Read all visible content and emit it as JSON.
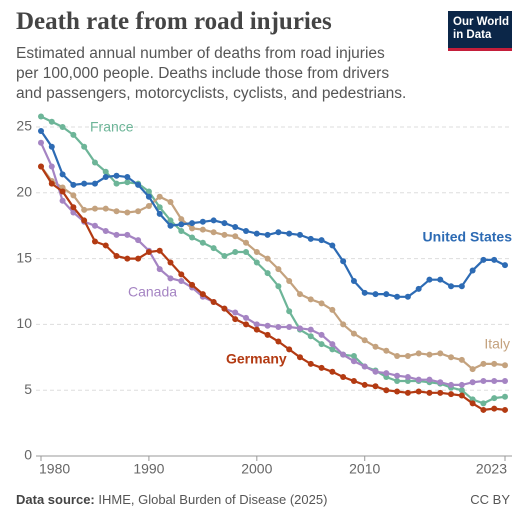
{
  "chart_data": {
    "type": "line",
    "title": "Death rate from road injuries",
    "subtitle": "Estimated annual number of deaths from road injuries per 100,000 people. Deaths include those from drivers and passengers, motorcyclists, cyclists, and pedestrians.",
    "logo": "Our World in Data",
    "source_label": "Data source:",
    "source": "IHME, Global Burden of Disease (2025)",
    "license": "CC BY",
    "x": [
      1980,
      1981,
      1982,
      1983,
      1984,
      1985,
      1986,
      1987,
      1988,
      1989,
      1990,
      1991,
      1992,
      1993,
      1994,
      1995,
      1996,
      1997,
      1998,
      1999,
      2000,
      2001,
      2002,
      2003,
      2004,
      2005,
      2006,
      2007,
      2008,
      2009,
      2010,
      2011,
      2012,
      2013,
      2014,
      2015,
      2016,
      2017,
      2018,
      2019,
      2020,
      2021,
      2022,
      2023
    ],
    "xlim": [
      1980,
      2023
    ],
    "xticks": [
      1980,
      1990,
      2000,
      2010,
      2023
    ],
    "ylim": [
      0,
      25
    ],
    "yticks": [
      0,
      5,
      10,
      15,
      20,
      25
    ],
    "grid": true,
    "series": [
      {
        "name": "United States",
        "color": "#2d6bb4",
        "values": [
          24.7,
          23.5,
          21.4,
          20.6,
          20.7,
          20.7,
          21.2,
          21.3,
          21.2,
          20.6,
          19.7,
          18.4,
          17.5,
          17.6,
          17.7,
          17.8,
          17.9,
          17.7,
          17.4,
          17.1,
          16.9,
          16.8,
          17.0,
          16.9,
          16.8,
          16.5,
          16.4,
          16.0,
          14.8,
          13.3,
          12.4,
          12.3,
          12.3,
          12.1,
          12.1,
          12.7,
          13.4,
          13.4,
          12.9,
          12.9,
          14.1,
          14.9,
          14.9,
          14.5
        ]
      },
      {
        "name": "France",
        "color": "#6db598",
        "values": [
          25.8,
          25.4,
          25.0,
          24.4,
          23.5,
          22.3,
          21.6,
          20.7,
          20.8,
          20.7,
          20.1,
          18.9,
          17.9,
          17.1,
          16.6,
          16.2,
          15.8,
          15.2,
          15.5,
          15.5,
          14.7,
          13.9,
          12.9,
          11.0,
          9.6,
          9.1,
          8.5,
          8.1,
          7.7,
          7.6,
          6.8,
          6.5,
          6.0,
          5.7,
          5.7,
          5.7,
          5.6,
          5.5,
          5.2,
          5.0,
          4.3,
          4.0,
          4.4,
          4.5
        ]
      },
      {
        "name": "Italy",
        "color": "#c4a27e",
        "values": [
          22.0,
          20.9,
          20.4,
          19.8,
          18.7,
          18.8,
          18.8,
          18.6,
          18.5,
          18.6,
          19.0,
          19.7,
          19.3,
          18.0,
          17.3,
          17.2,
          17.0,
          16.8,
          16.7,
          16.2,
          15.5,
          15.0,
          14.2,
          13.3,
          12.3,
          11.9,
          11.6,
          11.1,
          10.0,
          9.3,
          8.8,
          8.3,
          8.0,
          7.6,
          7.6,
          7.8,
          7.7,
          7.8,
          7.5,
          7.3,
          6.6,
          7.0,
          7.0,
          6.9
        ]
      },
      {
        "name": "Canada",
        "color": "#a584c3",
        "values": [
          23.8,
          22.0,
          19.4,
          18.5,
          17.8,
          17.5,
          17.1,
          16.8,
          16.8,
          16.4,
          15.6,
          14.2,
          13.5,
          13.3,
          12.8,
          12.1,
          11.7,
          11.2,
          10.9,
          10.5,
          10.0,
          9.9,
          9.8,
          9.8,
          9.7,
          9.6,
          9.2,
          8.5,
          7.7,
          7.2,
          6.8,
          6.4,
          6.3,
          6.1,
          6.0,
          5.8,
          5.8,
          5.6,
          5.4,
          5.4,
          5.6,
          5.7,
          5.7,
          5.7
        ]
      },
      {
        "name": "Germany",
        "color": "#b33a12",
        "values": [
          22.0,
          20.7,
          20.1,
          18.9,
          17.9,
          16.3,
          16.0,
          15.2,
          15.0,
          15.0,
          15.5,
          15.6,
          14.7,
          13.8,
          13.0,
          12.3,
          11.7,
          11.2,
          10.4,
          10.0,
          9.6,
          9.2,
          8.7,
          8.1,
          7.5,
          7.0,
          6.7,
          6.4,
          6.0,
          5.7,
          5.4,
          5.3,
          5.0,
          4.9,
          4.8,
          4.9,
          4.8,
          4.8,
          4.7,
          4.6,
          4.0,
          3.5,
          3.6,
          3.5
        ]
      }
    ]
  }
}
